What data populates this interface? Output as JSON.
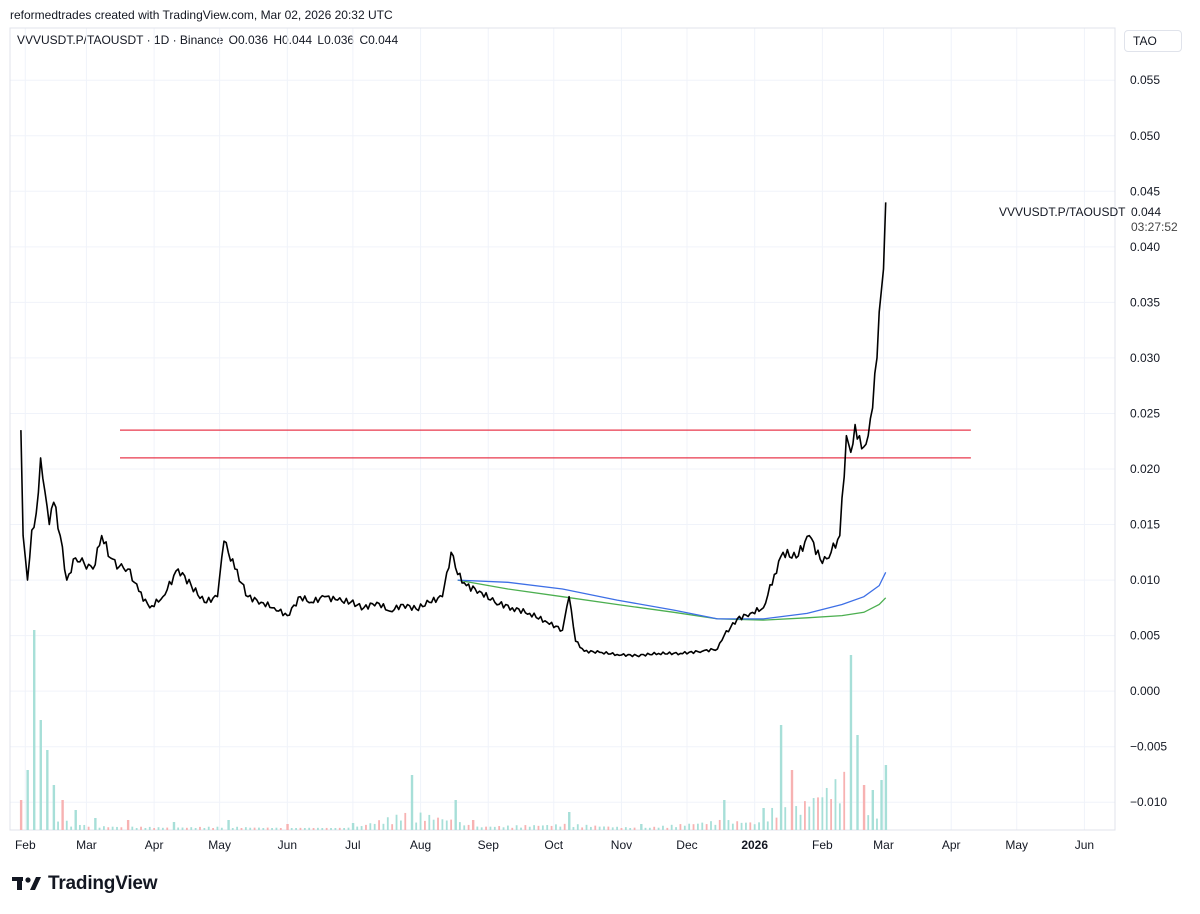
{
  "header": {
    "caption": "reformedtrades created with TradingView.com, Mar 02, 2026 20:32 UTC"
  },
  "legend": {
    "symbol_line": "VVVUSDT.P/TAOUSDT · 1D · Binance",
    "open": "O0.036",
    "high": "H0.044",
    "low": "L0.036",
    "close": "C0.044"
  },
  "currency_badge": "TAO",
  "last_price": {
    "symbol": "VVVUSDT.P/TAOUSDT",
    "value": "0.044",
    "countdown": "03:27:52"
  },
  "footer": {
    "brand": "TradingView",
    "logo_icon": "tradingview-logo-icon"
  },
  "colors": {
    "candle": "#000000",
    "resistance": "#e8394d",
    "ma_blue": "#3d6fe6",
    "ma_green": "#4caf50",
    "vol_up": "#a7dfd8",
    "vol_down": "#f7b2b2",
    "grid": "#f0f3fa"
  },
  "chart_data": {
    "type": "line",
    "price_axis": {
      "ticks": [
        "0.055",
        "0.050",
        "0.045",
        "0.040",
        "0.035",
        "0.030",
        "0.025",
        "0.020",
        "0.015",
        "0.010",
        "0.005",
        "0.000",
        "−0.005",
        "−0.010"
      ],
      "ylim": [
        -0.0125,
        0.057
      ]
    },
    "time_axis": {
      "ticks": [
        "Feb",
        "Mar",
        "Apr",
        "May",
        "Jun",
        "Jul",
        "Aug",
        "Sep",
        "Oct",
        "Nov",
        "Dec",
        "2026",
        "Feb",
        "Mar",
        "Apr",
        "May",
        "Jun"
      ],
      "bold": [
        false,
        false,
        false,
        false,
        false,
        false,
        false,
        false,
        false,
        false,
        false,
        true,
        false,
        false,
        false,
        false,
        false
      ],
      "xlim": [
        "2025-01-25",
        "2026-06-15"
      ]
    },
    "price_series": {
      "name": "VVVUSDT.P/TAOUSDT",
      "x": [
        "2025-01-30",
        "2025-01-31",
        "2025-02-02",
        "2025-02-04",
        "2025-02-06",
        "2025-02-08",
        "2025-02-10",
        "2025-02-12",
        "2025-02-14",
        "2025-02-17",
        "2025-02-20",
        "2025-02-24",
        "2025-02-28",
        "2025-03-04",
        "2025-03-08",
        "2025-03-12",
        "2025-03-16",
        "2025-03-20",
        "2025-03-25",
        "2025-03-30",
        "2025-04-05",
        "2025-04-12",
        "2025-04-18",
        "2025-04-24",
        "2025-04-30",
        "2025-05-03",
        "2025-05-08",
        "2025-05-14",
        "2025-05-20",
        "2025-05-26",
        "2025-06-01",
        "2025-06-07",
        "2025-06-12",
        "2025-06-18",
        "2025-06-24",
        "2025-06-30",
        "2025-07-06",
        "2025-07-12",
        "2025-07-18",
        "2025-07-24",
        "2025-07-30",
        "2025-08-05",
        "2025-08-11",
        "2025-08-15",
        "2025-08-18",
        "2025-08-22",
        "2025-08-28",
        "2025-09-04",
        "2025-09-12",
        "2025-09-20",
        "2025-09-28",
        "2025-10-05",
        "2025-10-08",
        "2025-10-11",
        "2025-10-15",
        "2025-10-22",
        "2025-10-30",
        "2025-11-08",
        "2025-11-18",
        "2025-11-28",
        "2025-12-08",
        "2025-12-15",
        "2025-12-18",
        "2025-12-24",
        "2025-12-30",
        "2026-01-05",
        "2026-01-10",
        "2026-01-14",
        "2026-01-20",
        "2026-01-26",
        "2026-02-01",
        "2026-02-05",
        "2026-02-09",
        "2026-02-12",
        "2026-02-14",
        "2026-02-16",
        "2026-02-18",
        "2026-02-20",
        "2026-02-22",
        "2026-02-24",
        "2026-02-26",
        "2026-02-28",
        "2026-03-01",
        "2026-03-02"
      ],
      "y": [
        0.0235,
        0.014,
        0.01,
        0.0145,
        0.016,
        0.021,
        0.018,
        0.015,
        0.017,
        0.014,
        0.01,
        0.012,
        0.0115,
        0.011,
        0.014,
        0.012,
        0.0112,
        0.011,
        0.009,
        0.0075,
        0.0085,
        0.011,
        0.0095,
        0.008,
        0.0085,
        0.0135,
        0.011,
        0.0085,
        0.008,
        0.0075,
        0.0068,
        0.0085,
        0.008,
        0.0085,
        0.0082,
        0.008,
        0.0075,
        0.008,
        0.0072,
        0.0078,
        0.0074,
        0.008,
        0.0085,
        0.0125,
        0.0105,
        0.0095,
        0.009,
        0.008,
        0.0075,
        0.007,
        0.0062,
        0.0055,
        0.0085,
        0.0045,
        0.0036,
        0.0035,
        0.0033,
        0.0032,
        0.0034,
        0.0034,
        0.0036,
        0.0038,
        0.005,
        0.0065,
        0.007,
        0.0075,
        0.0105,
        0.0125,
        0.012,
        0.014,
        0.0115,
        0.0125,
        0.014,
        0.023,
        0.0215,
        0.024,
        0.023,
        0.022,
        0.023,
        0.0255,
        0.03,
        0.036,
        0.038,
        0.044
      ]
    },
    "ma_blue": {
      "x": [
        "2025-08-18",
        "2025-09-10",
        "2025-10-05",
        "2025-10-30",
        "2025-11-25",
        "2025-12-15",
        "2026-01-05",
        "2026-01-25",
        "2026-02-10",
        "2026-02-20",
        "2026-02-27",
        "2026-03-02"
      ],
      "y": [
        0.01,
        0.0098,
        0.0092,
        0.0082,
        0.0073,
        0.0065,
        0.0065,
        0.007,
        0.0078,
        0.0085,
        0.0095,
        0.0107
      ]
    },
    "ma_green": {
      "x": [
        "2025-08-18",
        "2025-09-10",
        "2025-10-05",
        "2025-10-30",
        "2025-11-25",
        "2025-12-15",
        "2026-01-05",
        "2026-01-25",
        "2026-02-10",
        "2026-02-20",
        "2026-02-27",
        "2026-03-02"
      ],
      "y": [
        0.01,
        0.0092,
        0.0085,
        0.0078,
        0.0071,
        0.0065,
        0.0064,
        0.0066,
        0.0068,
        0.0071,
        0.0078,
        0.0084
      ]
    },
    "resistance_levels": [
      0.0235,
      0.021
    ],
    "resistance_range": [
      "2025-01-25",
      "2026-04-10"
    ],
    "volume": {
      "x": [
        "2025-01-30",
        "2025-02-02",
        "2025-02-05",
        "2025-02-08",
        "2025-02-11",
        "2025-02-14",
        "2025-02-18",
        "2025-02-24",
        "2025-03-05",
        "2025-03-20",
        "2025-04-10",
        "2025-05-05",
        "2025-06-01",
        "2025-07-01",
        "2025-07-28",
        "2025-08-17",
        "2025-08-25",
        "2025-10-08",
        "2025-11-10",
        "2025-12-18",
        "2026-01-05",
        "2026-01-13",
        "2026-01-18",
        "2026-02-14",
        "2026-02-17",
        "2026-02-20",
        "2026-02-24",
        "2026-02-28",
        "2026-03-02"
      ],
      "y": [
        30,
        60,
        200,
        110,
        80,
        45,
        30,
        20,
        12,
        10,
        8,
        10,
        6,
        7,
        55,
        30,
        10,
        18,
        6,
        30,
        22,
        105,
        60,
        175,
        95,
        45,
        40,
        50,
        65
      ],
      "up": [
        false,
        true,
        true,
        true,
        true,
        true,
        false,
        true,
        true,
        false,
        true,
        true,
        false,
        true,
        true,
        true,
        false,
        true,
        true,
        true,
        true,
        true,
        false,
        true,
        true,
        false,
        true,
        true,
        true
      ]
    }
  }
}
